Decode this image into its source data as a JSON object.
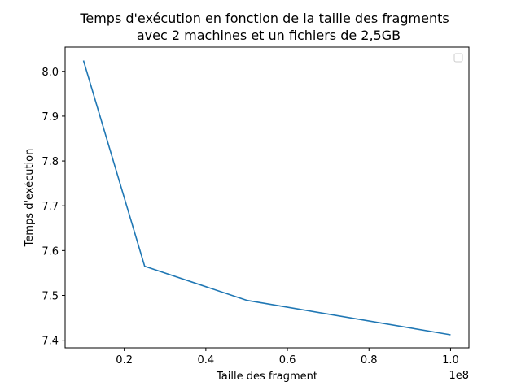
{
  "chart_data": {
    "type": "line",
    "title_line1": "Temps d'exécution en fonction de la taille des fragments",
    "title_line2": "avec 2 machines et un fichiers de 2,5GB",
    "xlabel": "Taille des fragment",
    "ylabel": "Temps d'exécution",
    "x_offset_label": "1e8",
    "x_multiplier": 100000000,
    "xlim": [
      0.055,
      1.045
    ],
    "ylim": [
      7.383,
      8.054
    ],
    "xticks": [
      0.2,
      0.4,
      0.6,
      0.8,
      1.0
    ],
    "xtick_labels": [
      "0.2",
      "0.4",
      "0.6",
      "0.8",
      "1.0"
    ],
    "yticks": [
      7.4,
      7.5,
      7.6,
      7.7,
      7.8,
      7.9,
      8.0
    ],
    "ytick_labels": [
      "7.4",
      "7.5",
      "7.6",
      "7.7",
      "7.8",
      "7.9",
      "8.0"
    ],
    "grid": false,
    "legend": "top-right",
    "series": [
      {
        "color": "#1f77b4",
        "x": [
          0.1,
          0.25,
          0.5,
          1.0
        ],
        "y": [
          8.024,
          7.565,
          7.489,
          7.412
        ]
      }
    ]
  }
}
